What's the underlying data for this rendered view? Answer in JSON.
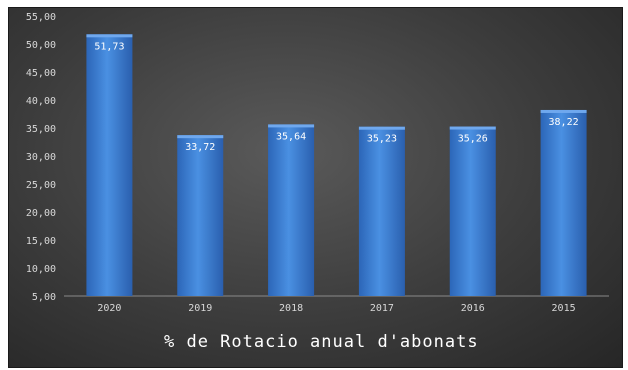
{
  "chart_data": {
    "type": "bar",
    "title": "% de Rotacio anual d'abonats",
    "xlabel": "",
    "ylabel": "",
    "categories": [
      "2020",
      "2019",
      "2018",
      "2017",
      "2016",
      "2015"
    ],
    "values": [
      51.73,
      33.72,
      35.64,
      35.23,
      35.26,
      38.22
    ],
    "value_labels": [
      "51,73",
      "33,72",
      "35,64",
      "35,23",
      "35,26",
      "38,22"
    ],
    "ylim": [
      5,
      55
    ],
    "yticks": [
      5,
      10,
      15,
      20,
      25,
      30,
      35,
      40,
      45,
      50,
      55
    ],
    "ytick_labels": [
      "5,00",
      "10,00",
      "15,00",
      "20,00",
      "25,00",
      "30,00",
      "35,00",
      "40,00",
      "45,00",
      "50,00",
      "55,00"
    ],
    "grid": false,
    "legend": "none",
    "colors": {
      "bar": "#3a7fd6",
      "bar_top": "#6fa8ee",
      "background": "#3c3c3c",
      "text": "#ffffff"
    }
  }
}
